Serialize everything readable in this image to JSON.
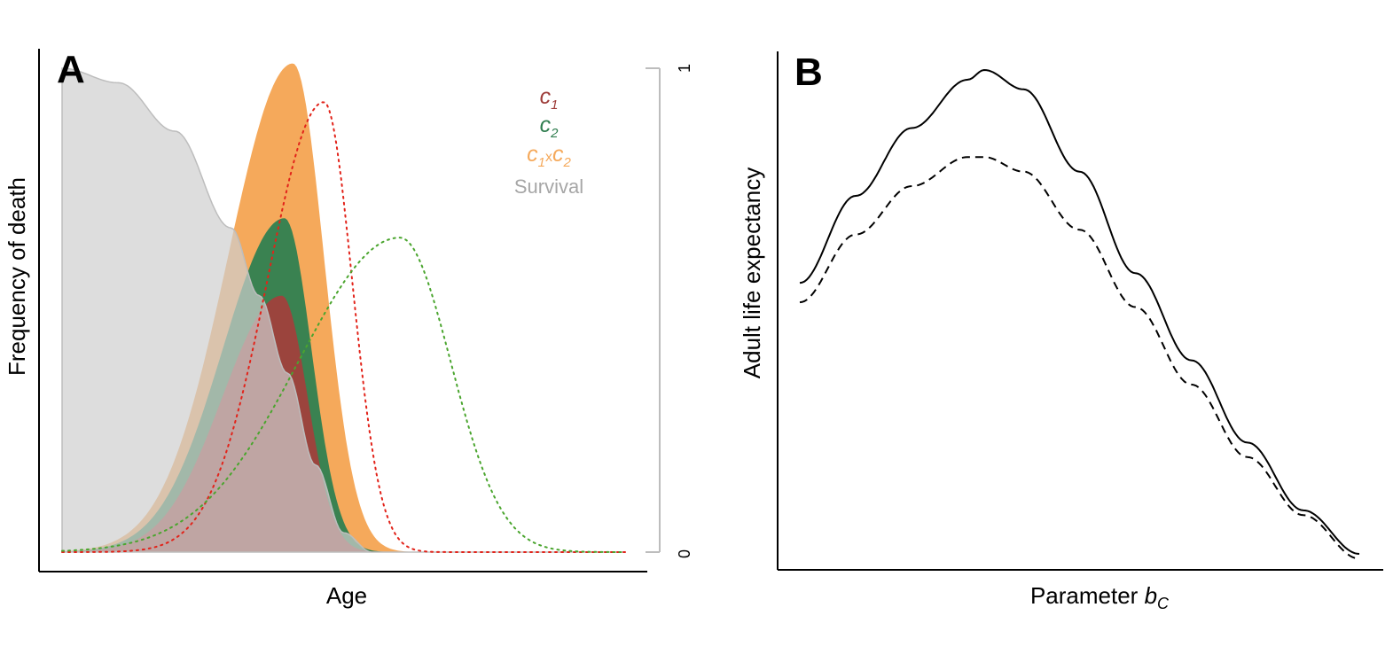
{
  "panels": {
    "a": {
      "letter": "A",
      "xlabel": "Age",
      "ylabel": "Frequency of death"
    },
    "b": {
      "letter": "B",
      "xlabel_main": "Parameter ",
      "xlabel_var": "b",
      "xlabel_sub": "C",
      "ylabel": "Adult life expectancy"
    }
  },
  "legend": [
    {
      "base": "c",
      "sub": "1",
      "color": "#9e3d3a"
    },
    {
      "base": "c",
      "sub": "2",
      "color": "#2f7d4f"
    },
    {
      "base": "c",
      "sub": "1",
      "mid": "x",
      "base2": "c",
      "sub2": "2",
      "color": "#f5a95b"
    },
    {
      "text": "Survival",
      "color": "#a6a6a6"
    }
  ],
  "secondary_axis": {
    "ticks": [
      "0",
      "1"
    ],
    "color": "#bdbdbd"
  },
  "colors": {
    "c1_fill": "#a0403c",
    "c2_fill": "#2f8051",
    "c1xc2_fill": "#f5a95b",
    "survival_fill": "#cfcfcf",
    "c1_dotted": "#e2231a",
    "c2_dotted": "#4aa52e",
    "axis": "#000000"
  },
  "chart_data": [
    {
      "type": "area",
      "title": "",
      "xlabel": "Age",
      "ylabel": "Frequency of death",
      "y2_ticks": [
        0,
        1
      ],
      "series": [
        {
          "name": "Survival",
          "kind": "survival",
          "x": [
            0,
            0.1,
            0.2,
            0.3,
            0.35,
            0.4,
            0.45,
            0.5,
            0.55,
            1.0
          ],
          "values": [
            1.0,
            0.97,
            0.87,
            0.67,
            0.53,
            0.37,
            0.18,
            0.04,
            0.0,
            0.0
          ]
        },
        {
          "name": "c1xc2",
          "kind": "bell",
          "peak_x": 0.41,
          "peak_y": 1.01,
          "sd_left": 0.115,
          "sd_right": 0.055
        },
        {
          "name": "c2",
          "kind": "bell",
          "peak_x": 0.395,
          "peak_y": 0.69,
          "sd_left": 0.11,
          "sd_right": 0.048
        },
        {
          "name": "c1",
          "kind": "bell",
          "peak_x": 0.39,
          "peak_y": 0.53,
          "sd_left": 0.105,
          "sd_right": 0.046
        },
        {
          "name": "c1 dotted",
          "kind": "bell-dotted",
          "peak_x": 0.465,
          "peak_y": 0.93,
          "sd_left": 0.1,
          "sd_right": 0.05
        },
        {
          "name": "c2 dotted",
          "kind": "bell-dotted",
          "peak_x": 0.6,
          "peak_y": 0.65,
          "sd_left": 0.18,
          "sd_right": 0.09
        }
      ]
    },
    {
      "type": "line",
      "title": "",
      "xlabel": "Parameter bC",
      "ylabel": "Adult life expectancy",
      "series": [
        {
          "name": "solid",
          "style": "solid",
          "x": [
            0,
            0.1,
            0.2,
            0.3,
            0.33,
            0.4,
            0.5,
            0.6,
            0.7,
            0.8,
            0.9,
            1.0
          ],
          "values": [
            0.56,
            0.74,
            0.88,
            0.98,
            1.0,
            0.96,
            0.79,
            0.58,
            0.4,
            0.23,
            0.09,
            0.0
          ]
        },
        {
          "name": "dashed",
          "style": "dashed",
          "x": [
            0,
            0.1,
            0.2,
            0.3,
            0.33,
            0.4,
            0.5,
            0.6,
            0.7,
            0.8,
            0.9,
            1.0
          ],
          "values": [
            0.52,
            0.66,
            0.76,
            0.82,
            0.82,
            0.79,
            0.67,
            0.51,
            0.35,
            0.2,
            0.08,
            -0.01
          ]
        }
      ]
    }
  ]
}
